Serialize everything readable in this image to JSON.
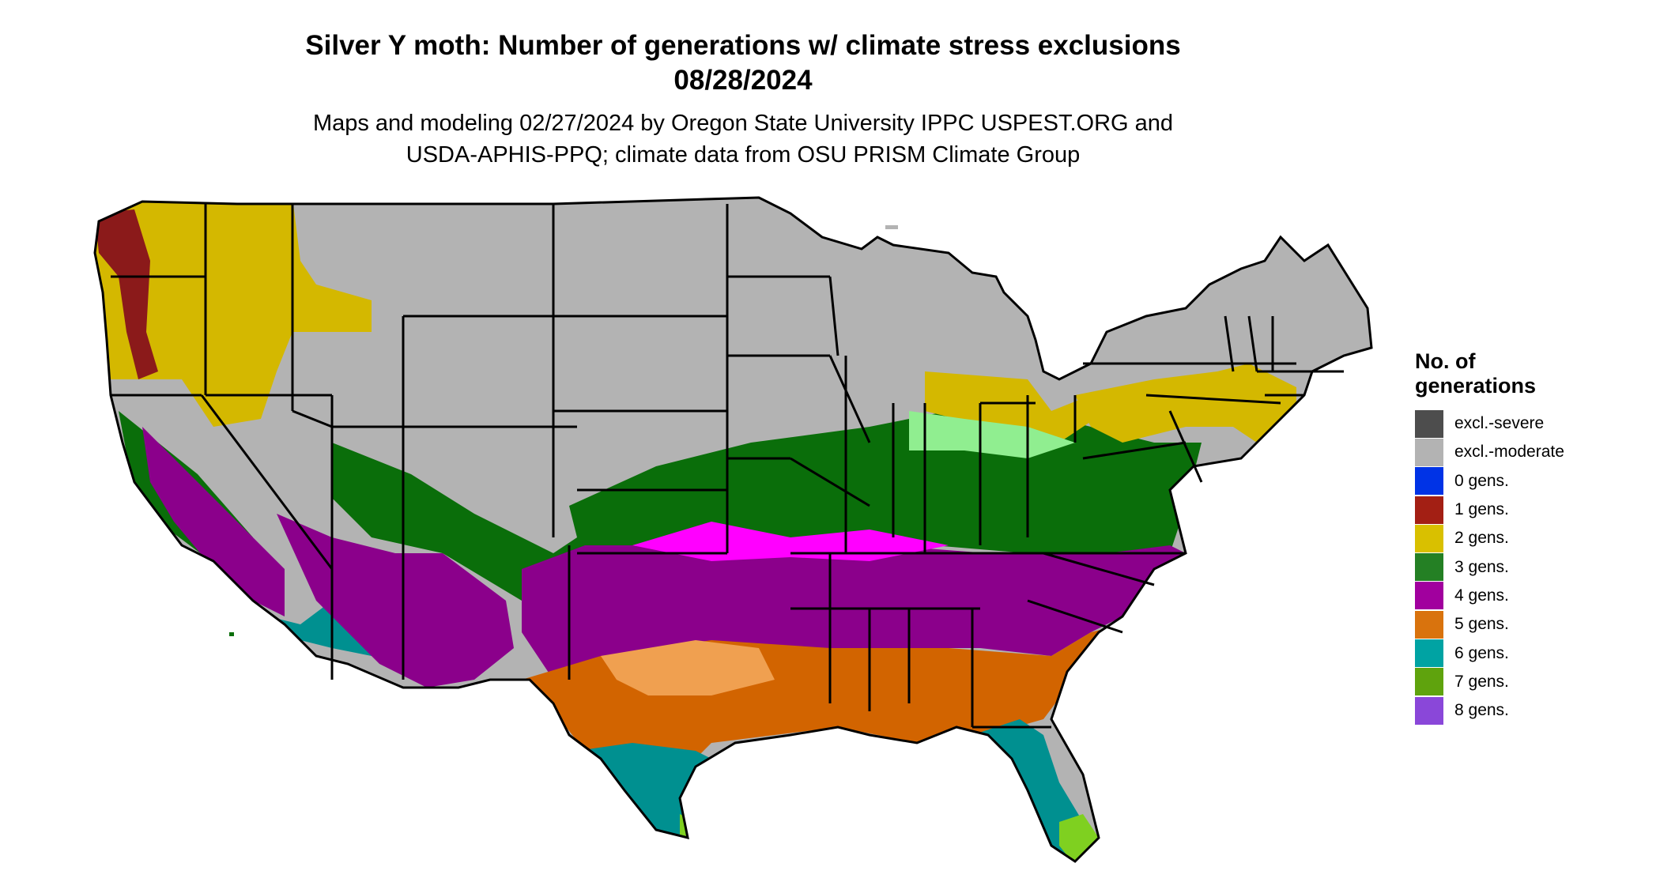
{
  "title_line1": "Silver Y moth: Number of generations w/ climate stress exclusions",
  "title_line2": "08/28/2024",
  "subtitle_line1": "Maps and modeling 02/27/2024 by Oregon State University IPPC USPEST.ORG and",
  "subtitle_line2": "USDA-APHIS-PPQ; climate data from OSU PRISM Climate Group",
  "legend": {
    "title_line1": "No. of",
    "title_line2": "generations",
    "items": [
      {
        "label": "excl.-severe",
        "color": "#4d4d4d"
      },
      {
        "label": "excl.-moderate",
        "color": "#b3b3b3"
      },
      {
        "label": "0 gens.",
        "color": "#0033e6"
      },
      {
        "label": "1 gens.",
        "color": "#a31f14"
      },
      {
        "label": "2 gens.",
        "color": "#d9c000"
      },
      {
        "label": "3 gens.",
        "color": "#248024"
      },
      {
        "label": "4 gens.",
        "color": "#a1009e"
      },
      {
        "label": "5 gens.",
        "color": "#d9730d"
      },
      {
        "label": "6 gens.",
        "color": "#00a3a3"
      },
      {
        "label": "7 gens.",
        "color": "#5fa30d"
      },
      {
        "label": "8 gens.",
        "color": "#8a47d9"
      }
    ]
  },
  "map_colors": {
    "excluded_moderate": "#b3b3b3",
    "gen1": "#8b1a1a",
    "gen2": "#d4b800",
    "gen3_dark": "#0a6e0a",
    "gen3_light": "#90ee90",
    "gen4": "#8b008b",
    "gen4_bright": "#ff00ff",
    "gen5": "#d26400",
    "gen5_light": "#f0a050",
    "gen6": "#009090",
    "gen6_light": "#00e0e0",
    "gen7": "#7fd020",
    "border": "#000000"
  }
}
